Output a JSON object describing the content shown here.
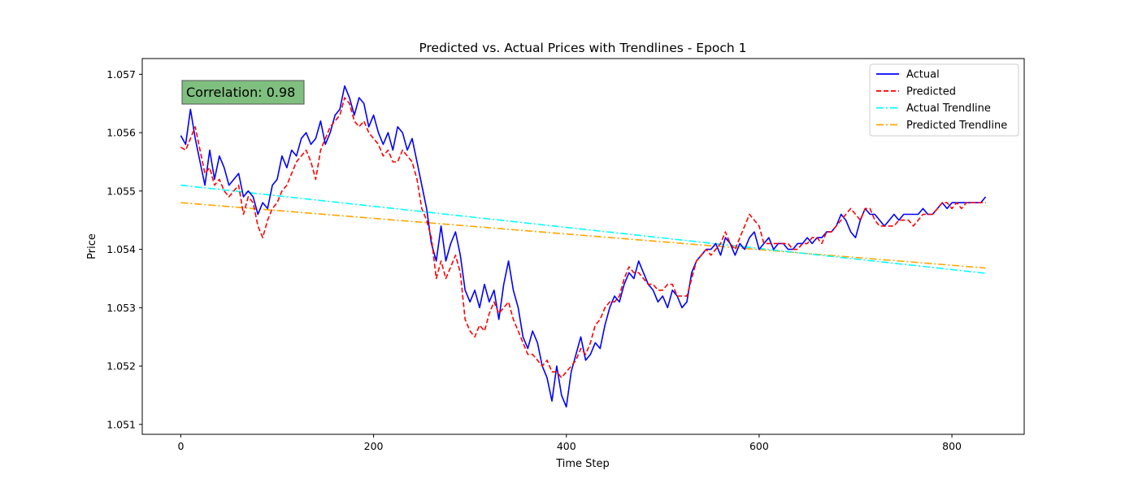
{
  "chart_data": {
    "type": "line",
    "title": "Predicted vs. Actual Prices with Trendlines - Epoch 1",
    "xlabel": "Time Step",
    "ylabel": "Price",
    "xlim": [
      -40,
      875
    ],
    "ylim": [
      1.05083,
      1.05727
    ],
    "x_ticks": [
      0,
      200,
      400,
      600,
      800
    ],
    "y_ticks": [
      1.051,
      1.052,
      1.053,
      1.054,
      1.055,
      1.056,
      1.057
    ],
    "grid": false,
    "legend_position": "top-right",
    "annotation": "Correlation: 0.98",
    "series": [
      {
        "name": "Actual",
        "color": "#0000ff",
        "style": "solid",
        "x": [
          0,
          5,
          10,
          15,
          20,
          25,
          30,
          35,
          40,
          45,
          50,
          55,
          60,
          65,
          70,
          75,
          80,
          85,
          90,
          95,
          100,
          105,
          110,
          115,
          120,
          125,
          130,
          135,
          140,
          145,
          150,
          155,
          160,
          165,
          170,
          175,
          180,
          185,
          190,
          195,
          200,
          205,
          210,
          215,
          220,
          225,
          230,
          235,
          240,
          245,
          250,
          255,
          260,
          265,
          270,
          275,
          280,
          285,
          290,
          295,
          300,
          305,
          310,
          315,
          320,
          325,
          330,
          335,
          340,
          345,
          350,
          355,
          360,
          365,
          370,
          375,
          380,
          385,
          390,
          395,
          400,
          405,
          410,
          415,
          420,
          425,
          430,
          435,
          440,
          445,
          450,
          455,
          460,
          465,
          470,
          475,
          480,
          485,
          490,
          495,
          500,
          505,
          510,
          515,
          520,
          525,
          530,
          535,
          540,
          545,
          550,
          555,
          560,
          565,
          570,
          575,
          580,
          585,
          590,
          595,
          600,
          605,
          610,
          615,
          620,
          625,
          630,
          635,
          640,
          645,
          650,
          655,
          660,
          665,
          670,
          675,
          680,
          685,
          690,
          695,
          700,
          705,
          710,
          715,
          720,
          725,
          730,
          735,
          740,
          745,
          750,
          755,
          760,
          765,
          770,
          775,
          780,
          785,
          790,
          795,
          800,
          805,
          810,
          815,
          820,
          825,
          830,
          835
        ],
        "values": [
          1.05595,
          1.0558,
          1.0564,
          1.0559,
          1.0555,
          1.0551,
          1.0557,
          1.0552,
          1.0556,
          1.0554,
          1.0551,
          1.0552,
          1.0553,
          1.0549,
          1.055,
          1.0549,
          1.0546,
          1.0548,
          1.0547,
          1.0551,
          1.0552,
          1.0556,
          1.0554,
          1.0557,
          1.0556,
          1.0559,
          1.056,
          1.0558,
          1.0559,
          1.0562,
          1.0558,
          1.056,
          1.0563,
          1.0564,
          1.0568,
          1.0566,
          1.0563,
          1.0566,
          1.0565,
          1.0561,
          1.0563,
          1.056,
          1.0558,
          1.056,
          1.0557,
          1.0561,
          1.056,
          1.0557,
          1.0559,
          1.0555,
          1.0551,
          1.0547,
          1.0541,
          1.0538,
          1.0544,
          1.0538,
          1.0541,
          1.0543,
          1.0539,
          1.0533,
          1.0531,
          1.0533,
          1.053,
          1.0534,
          1.0531,
          1.0533,
          1.0528,
          1.0534,
          1.0538,
          1.0533,
          1.053,
          1.0525,
          1.0523,
          1.0526,
          1.0524,
          1.052,
          1.0518,
          1.0514,
          1.052,
          1.0515,
          1.0513,
          1.0519,
          1.0522,
          1.0525,
          1.0521,
          1.0522,
          1.0524,
          1.0523,
          1.0527,
          1.053,
          1.0532,
          1.0531,
          1.0534,
          1.0536,
          1.0535,
          1.0538,
          1.0536,
          1.0534,
          1.0533,
          1.0531,
          1.0532,
          1.053,
          1.0533,
          1.0532,
          1.053,
          1.0531,
          1.0536,
          1.0538,
          1.0539,
          1.054,
          1.054,
          1.0541,
          1.0539,
          1.0542,
          1.0541,
          1.0539,
          1.0541,
          1.054,
          1.0542,
          1.0543,
          1.054,
          1.0541,
          1.0542,
          1.054,
          1.0541,
          1.0541,
          1.054,
          1.054,
          1.0541,
          1.0541,
          1.0542,
          1.0541,
          1.0542,
          1.0542,
          1.0543,
          1.0543,
          1.0544,
          1.0546,
          1.0545,
          1.0543,
          1.0542,
          1.0545,
          1.0547,
          1.0546,
          1.0546,
          1.0545,
          1.0544,
          1.0545,
          1.0546,
          1.0545,
          1.0546,
          1.0546,
          1.0546,
          1.0546,
          1.0547,
          1.0546,
          1.0546,
          1.0547,
          1.0548,
          1.0547,
          1.0548,
          1.0548,
          1.0548,
          1.0548,
          1.0548,
          1.0548,
          1.0548,
          1.0549
        ]
      },
      {
        "name": "Predicted",
        "color": "#ff0000",
        "style": "dashed",
        "x": [
          0,
          5,
          10,
          15,
          20,
          25,
          30,
          35,
          40,
          45,
          50,
          55,
          60,
          65,
          70,
          75,
          80,
          85,
          90,
          95,
          100,
          105,
          110,
          115,
          120,
          125,
          130,
          135,
          140,
          145,
          150,
          155,
          160,
          165,
          170,
          175,
          180,
          185,
          190,
          195,
          200,
          205,
          210,
          215,
          220,
          225,
          230,
          235,
          240,
          245,
          250,
          255,
          260,
          265,
          270,
          275,
          280,
          285,
          290,
          295,
          300,
          305,
          310,
          315,
          320,
          325,
          330,
          335,
          340,
          345,
          350,
          355,
          360,
          365,
          370,
          375,
          380,
          385,
          390,
          395,
          400,
          405,
          410,
          415,
          420,
          425,
          430,
          435,
          440,
          445,
          450,
          455,
          460,
          465,
          470,
          475,
          480,
          485,
          490,
          495,
          500,
          505,
          510,
          515,
          520,
          525,
          530,
          535,
          540,
          545,
          550,
          555,
          560,
          565,
          570,
          575,
          580,
          585,
          590,
          595,
          600,
          605,
          610,
          615,
          620,
          625,
          630,
          635,
          640,
          645,
          650,
          655,
          660,
          665,
          670,
          675,
          680,
          685,
          690,
          695,
          700,
          705,
          710,
          715,
          720,
          725,
          730,
          735,
          740,
          745,
          750,
          755,
          760,
          765,
          770,
          775,
          780,
          785,
          790,
          795,
          800,
          805,
          810,
          815,
          820,
          825,
          830,
          835
        ],
        "values": [
          1.05575,
          1.0557,
          1.0559,
          1.0561,
          1.0557,
          1.0553,
          1.0554,
          1.0551,
          1.0552,
          1.055,
          1.0549,
          1.055,
          1.0551,
          1.0546,
          1.0549,
          1.0548,
          1.0544,
          1.0542,
          1.0545,
          1.0547,
          1.0548,
          1.055,
          1.0551,
          1.0553,
          1.0555,
          1.0556,
          1.0557,
          1.0555,
          1.0552,
          1.0557,
          1.0559,
          1.0561,
          1.0562,
          1.0563,
          1.0566,
          1.0565,
          1.0562,
          1.0561,
          1.0562,
          1.056,
          1.0559,
          1.0558,
          1.0556,
          1.0557,
          1.0555,
          1.0555,
          1.0557,
          1.0556,
          1.0555,
          1.0552,
          1.0547,
          1.0545,
          1.0542,
          1.0535,
          1.0538,
          1.0535,
          1.0537,
          1.0539,
          1.0536,
          1.0528,
          1.0526,
          1.0525,
          1.0527,
          1.0526,
          1.0529,
          1.0531,
          1.0529,
          1.053,
          1.0531,
          1.0528,
          1.0526,
          1.0524,
          1.0522,
          1.0522,
          1.0521,
          1.052,
          1.0521,
          1.0519,
          1.0519,
          1.0518,
          1.0519,
          1.052,
          1.0521,
          1.0523,
          1.0522,
          1.0524,
          1.0527,
          1.0528,
          1.053,
          1.0531,
          1.0531,
          1.0532,
          1.0535,
          1.0537,
          1.0536,
          1.0536,
          1.0535,
          1.0534,
          1.0534,
          1.0533,
          1.0533,
          1.0534,
          1.0534,
          1.0532,
          1.0532,
          1.0532,
          1.0535,
          1.0538,
          1.0539,
          1.054,
          1.0539,
          1.054,
          1.0541,
          1.0543,
          1.0541,
          1.054,
          1.0542,
          1.0544,
          1.0546,
          1.0545,
          1.0544,
          1.0541,
          1.0541,
          1.0541,
          1.0541,
          1.0541,
          1.0541,
          1.054,
          1.054,
          1.0541,
          1.0541,
          1.0542,
          1.0542,
          1.0541,
          1.0543,
          1.0543,
          1.0544,
          1.0545,
          1.0546,
          1.0547,
          1.0546,
          1.0545,
          1.0547,
          1.0547,
          1.0545,
          1.0544,
          1.0544,
          1.0544,
          1.0544,
          1.0545,
          1.0545,
          1.0545,
          1.0544,
          1.0545,
          1.0546,
          1.0546,
          1.0546,
          1.0547,
          1.0548,
          1.0548,
          1.0547,
          1.0548,
          1.0547,
          1.0548,
          1.0548,
          1.0548,
          1.0548,
          1.0548
        ]
      },
      {
        "name": "Actual Trendline",
        "color": "#00ffff",
        "style": "dashdot",
        "x": [
          0,
          835
        ],
        "values": [
          1.0551,
          1.05359
        ]
      },
      {
        "name": "Predicted Trendline",
        "color": "#ffa500",
        "style": "dashdot",
        "x": [
          0,
          835
        ],
        "values": [
          1.0548,
          1.05368
        ]
      }
    ]
  }
}
